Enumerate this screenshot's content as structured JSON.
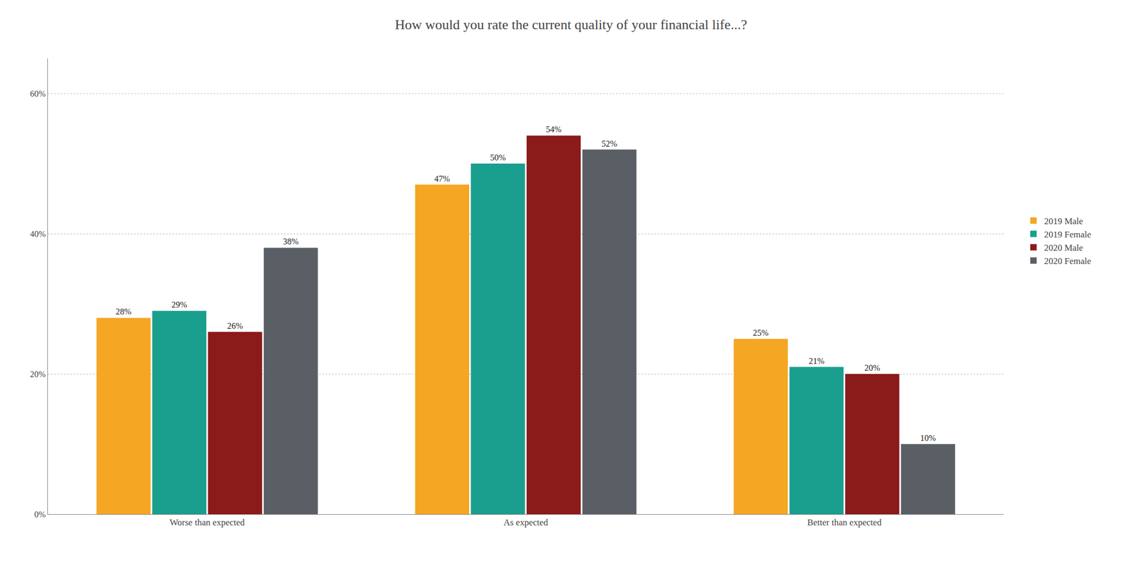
{
  "chart_data": {
    "type": "bar",
    "title": "How would you rate the current quality of your financial life...?",
    "categories": [
      "Worse than expected",
      "As expected",
      "Better than expected"
    ],
    "series": [
      {
        "name": "2019 Male",
        "color": "#F5A623",
        "values": [
          28,
          47,
          25
        ],
        "value_labels": [
          "28%",
          "47%",
          "25%"
        ]
      },
      {
        "name": "2019 Female",
        "color": "#1A9E8E",
        "values": [
          29,
          50,
          21
        ],
        "value_labels": [
          "29%",
          "50%",
          "21%"
        ]
      },
      {
        "name": "2020 Male",
        "color": "#8B1A1A",
        "values": [
          26,
          54,
          20
        ],
        "value_labels": [
          "26%",
          "54%",
          "20%"
        ]
      },
      {
        "name": "2020 Female",
        "color": "#5A5F66",
        "values": [
          38,
          52,
          10
        ],
        "value_labels": [
          "38%",
          "52%",
          "10%"
        ]
      }
    ],
    "ylim": [
      0,
      65
    ],
    "yticks": [
      {
        "value": 0,
        "label": "0%"
      },
      {
        "value": 20,
        "label": "20%"
      },
      {
        "value": 40,
        "label": "40%"
      },
      {
        "value": 60,
        "label": "60%"
      }
    ],
    "grid": true,
    "legend": "right",
    "data_labels": true
  }
}
